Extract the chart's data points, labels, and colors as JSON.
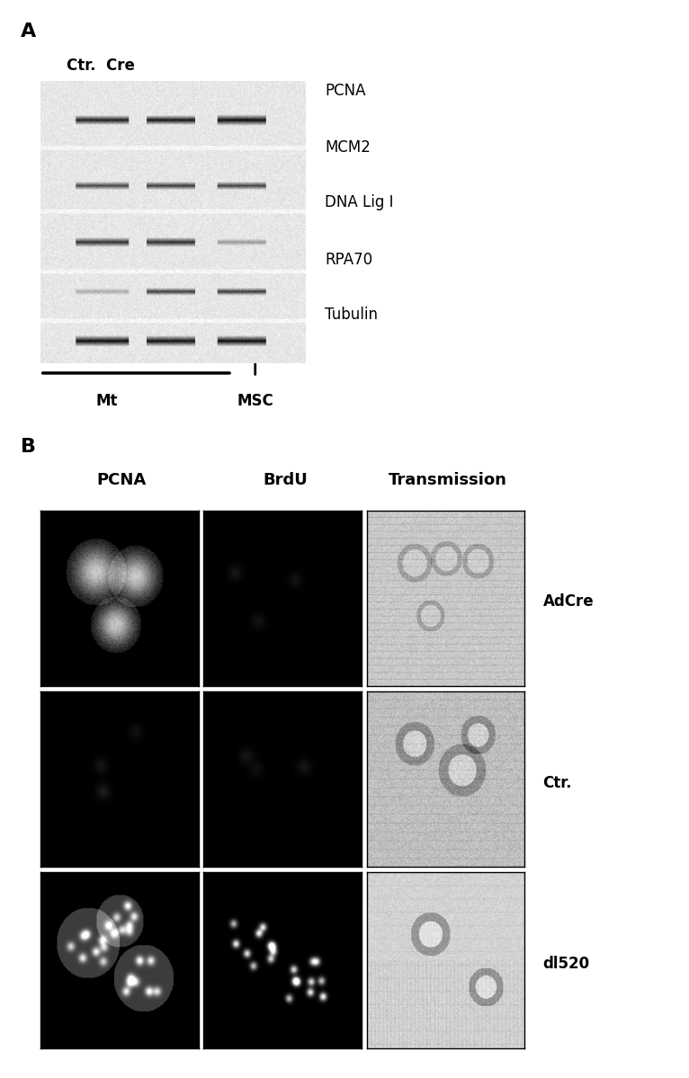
{
  "panel_A_label": "A",
  "panel_B_label": "B",
  "ctr_cre_label": "Ctr.  Cre",
  "wb_labels": [
    "PCNA",
    "MCM2",
    "DNA Lig I",
    "RPA70",
    "Tubulin"
  ],
  "mt_label": "Mt",
  "msc_label": "MSC",
  "col_headers_B": [
    "PCNA",
    "BrdU",
    "Transmission"
  ],
  "row_labels_B": [
    "AdCre",
    "Ctr.",
    "dl520"
  ],
  "bg_color": "#ffffff",
  "text_color": "#000000",
  "panel_label_fontsize": 16,
  "label_fontsize": 12,
  "header_fontsize": 13,
  "row_label_fontsize": 12,
  "fig_width": 7.66,
  "fig_height": 11.99
}
